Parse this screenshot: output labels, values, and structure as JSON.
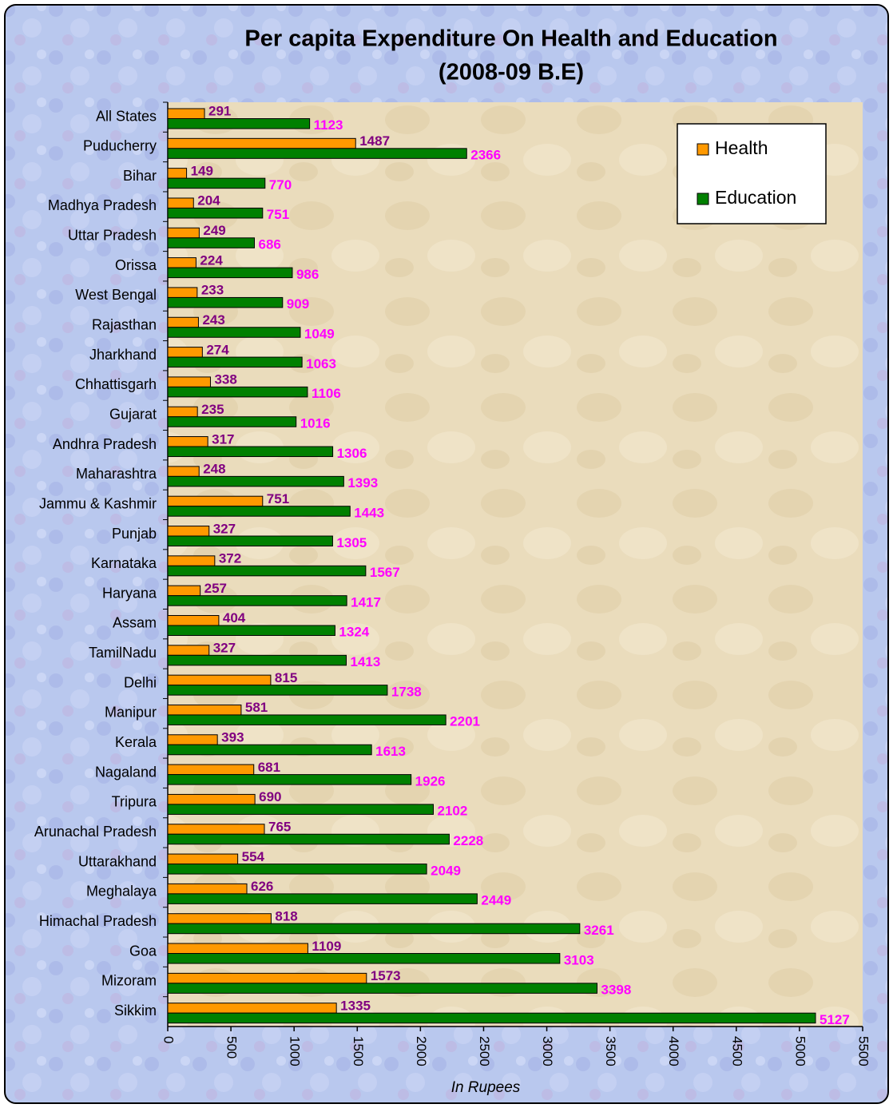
{
  "chart_data": {
    "type": "bar",
    "orientation": "horizontal",
    "title": "Per capita Expenditure On Health and Education",
    "subtitle": "(2008-09 B.E)",
    "xlabel": "In Rupees",
    "categories": [
      "All States",
      "Puducherry",
      "Bihar",
      "Madhya Pradesh",
      "Uttar Pradesh",
      "Orissa",
      "West Bengal",
      "Rajasthan",
      "Jharkhand",
      "Chhattisgarh",
      "Gujarat",
      "Andhra Pradesh",
      "Maharashtra",
      "Jammu & Kashmir",
      "Punjab",
      "Karnataka",
      "Haryana",
      "Assam",
      "TamilNadu",
      "Delhi",
      "Manipur",
      "Kerala",
      "Nagaland",
      "Tripura",
      "Arunachal Pradesh",
      "Uttarakhand",
      "Meghalaya",
      "Himachal Pradesh",
      "Goa",
      "Mizoram",
      "Sikkim"
    ],
    "series": [
      {
        "name": "Health",
        "color": "#ff9900",
        "label_color": "#800080",
        "values": [
          291,
          1487,
          149,
          204,
          249,
          224,
          233,
          243,
          274,
          338,
          235,
          317,
          248,
          751,
          327,
          372,
          257,
          404,
          327,
          815,
          581,
          393,
          681,
          690,
          765,
          554,
          626,
          818,
          1109,
          1573,
          1335
        ]
      },
      {
        "name": "Education",
        "color": "#008000",
        "label_color": "#ff00ff",
        "values": [
          1123,
          2366,
          770,
          751,
          686,
          986,
          909,
          1049,
          1063,
          1106,
          1016,
          1306,
          1393,
          1443,
          1305,
          1567,
          1417,
          1324,
          1413,
          1738,
          2201,
          1613,
          1926,
          2102,
          2228,
          2049,
          2449,
          3261,
          3103,
          3398,
          5127
        ]
      }
    ],
    "xlim": [
      0,
      5500
    ],
    "xticks": [
      0,
      500,
      1000,
      1500,
      2000,
      2500,
      3000,
      3500,
      4000,
      4500,
      5000,
      5500
    ],
    "grid": false,
    "legend": "upper right",
    "data_labels": true
  }
}
